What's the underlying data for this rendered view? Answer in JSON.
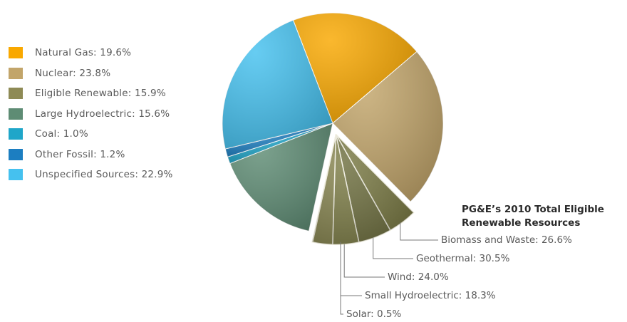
{
  "chart_data": {
    "type": "pie",
    "slices": [
      {
        "label": "Natural Gas",
        "value": 19.6,
        "color": "#F9A800"
      },
      {
        "label": "Nuclear",
        "value": 23.8,
        "color": "#C2A56A"
      },
      {
        "label": "Eligible Renewable",
        "value": 15.9,
        "color": "#8E8A55"
      },
      {
        "label": "Large Hydroelectric",
        "value": 15.6,
        "color": "#5E8C74"
      },
      {
        "label": "Coal",
        "value": 1.0,
        "color": "#1FA6C9"
      },
      {
        "label": "Other Fossil",
        "value": 1.2,
        "color": "#1C7EC1"
      },
      {
        "label": "Unspecified Sources",
        "value": 22.9,
        "color": "#45C1EF"
      }
    ],
    "legend": [
      "Natural Gas: 19.6%",
      "Nuclear: 23.8%",
      "Eligible Renewable: 15.9%",
      "Large Hydroelectric: 15.6%",
      "Coal: 1.0%",
      "Other Fossil: 1.2%",
      "Unspecified Sources: 22.9%"
    ],
    "exploded_slice": "Eligible Renewable",
    "breakdown": {
      "title_line1": "PG&E’s 2010 Total Eligible",
      "title_line2": "Renewable Resources",
      "items": [
        {
          "label": "Biomass and Waste",
          "value": 26.6,
          "text": "Biomass and Waste: 26.6%"
        },
        {
          "label": "Geothermal",
          "value": 30.5,
          "text": "Geothermal: 30.5%"
        },
        {
          "label": "Wind",
          "value": 24.0,
          "text": "Wind: 24.0%"
        },
        {
          "label": "Small Hydroelectric",
          "value": 18.3,
          "text": "Small Hydroelectric: 18.3%"
        },
        {
          "label": "Solar",
          "value": 0.5,
          "text": "Solar: 0.5%"
        }
      ]
    }
  }
}
